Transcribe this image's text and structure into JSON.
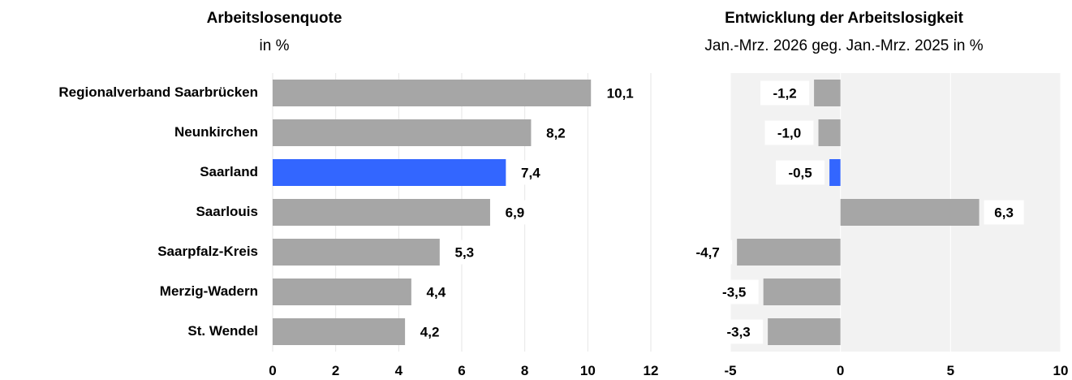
{
  "chart_data": [
    {
      "type": "bar",
      "orientation": "horizontal",
      "title": "Arbeitslosenquote",
      "subtitle": "in %",
      "categories": [
        "Regionalverband Saarbrücken",
        "Neunkirchen",
        "Saarland",
        "Saarlouis",
        "Saarpfalz-Kreis",
        "Merzig-Wadern",
        "St. Wendel"
      ],
      "values": [
        10.1,
        8.2,
        7.4,
        6.9,
        5.3,
        4.4,
        4.2
      ],
      "value_labels": [
        "10,1",
        "8,2",
        "7,4",
        "6,9",
        "5,3",
        "4,4",
        "4,2"
      ],
      "xlim": [
        0,
        12
      ],
      "ticks": [
        0,
        2,
        4,
        6,
        8,
        10,
        12
      ],
      "tick_labels": [
        "0",
        "2",
        "4",
        "6",
        "8",
        "10",
        "12"
      ],
      "grid": true,
      "highlight_category": "Saarland"
    },
    {
      "type": "bar",
      "orientation": "horizontal",
      "title": "Entwicklung der Arbeitslosigkeit",
      "subtitle": "Jan.-Mrz. 2026 geg. Jan.-Mrz. 2025 in %",
      "categories": [
        "Regionalverband Saarbrücken",
        "Neunkirchen",
        "Saarland",
        "Saarlouis",
        "Saarpfalz-Kreis",
        "Merzig-Wadern",
        "St. Wendel"
      ],
      "values": [
        -1.2,
        -1.0,
        -0.5,
        6.3,
        -4.7,
        -3.5,
        -3.3
      ],
      "value_labels": [
        "-1,2",
        "-1,0",
        "-0,5",
        "6,3",
        "-4,7",
        "-3,5",
        "-3,3"
      ],
      "xlim": [
        -5,
        10
      ],
      "ticks": [
        -5,
        0,
        5,
        10
      ],
      "tick_labels": [
        "-5",
        "0",
        "5",
        "10"
      ],
      "grid": true,
      "highlight_category": "Saarland"
    }
  ],
  "colors": {
    "bar": "#a6a6a6",
    "highlight": "#3366ff",
    "panel_background": "#f2f2f2",
    "gridline": "#ffffff",
    "label_box": "#ffffff"
  }
}
